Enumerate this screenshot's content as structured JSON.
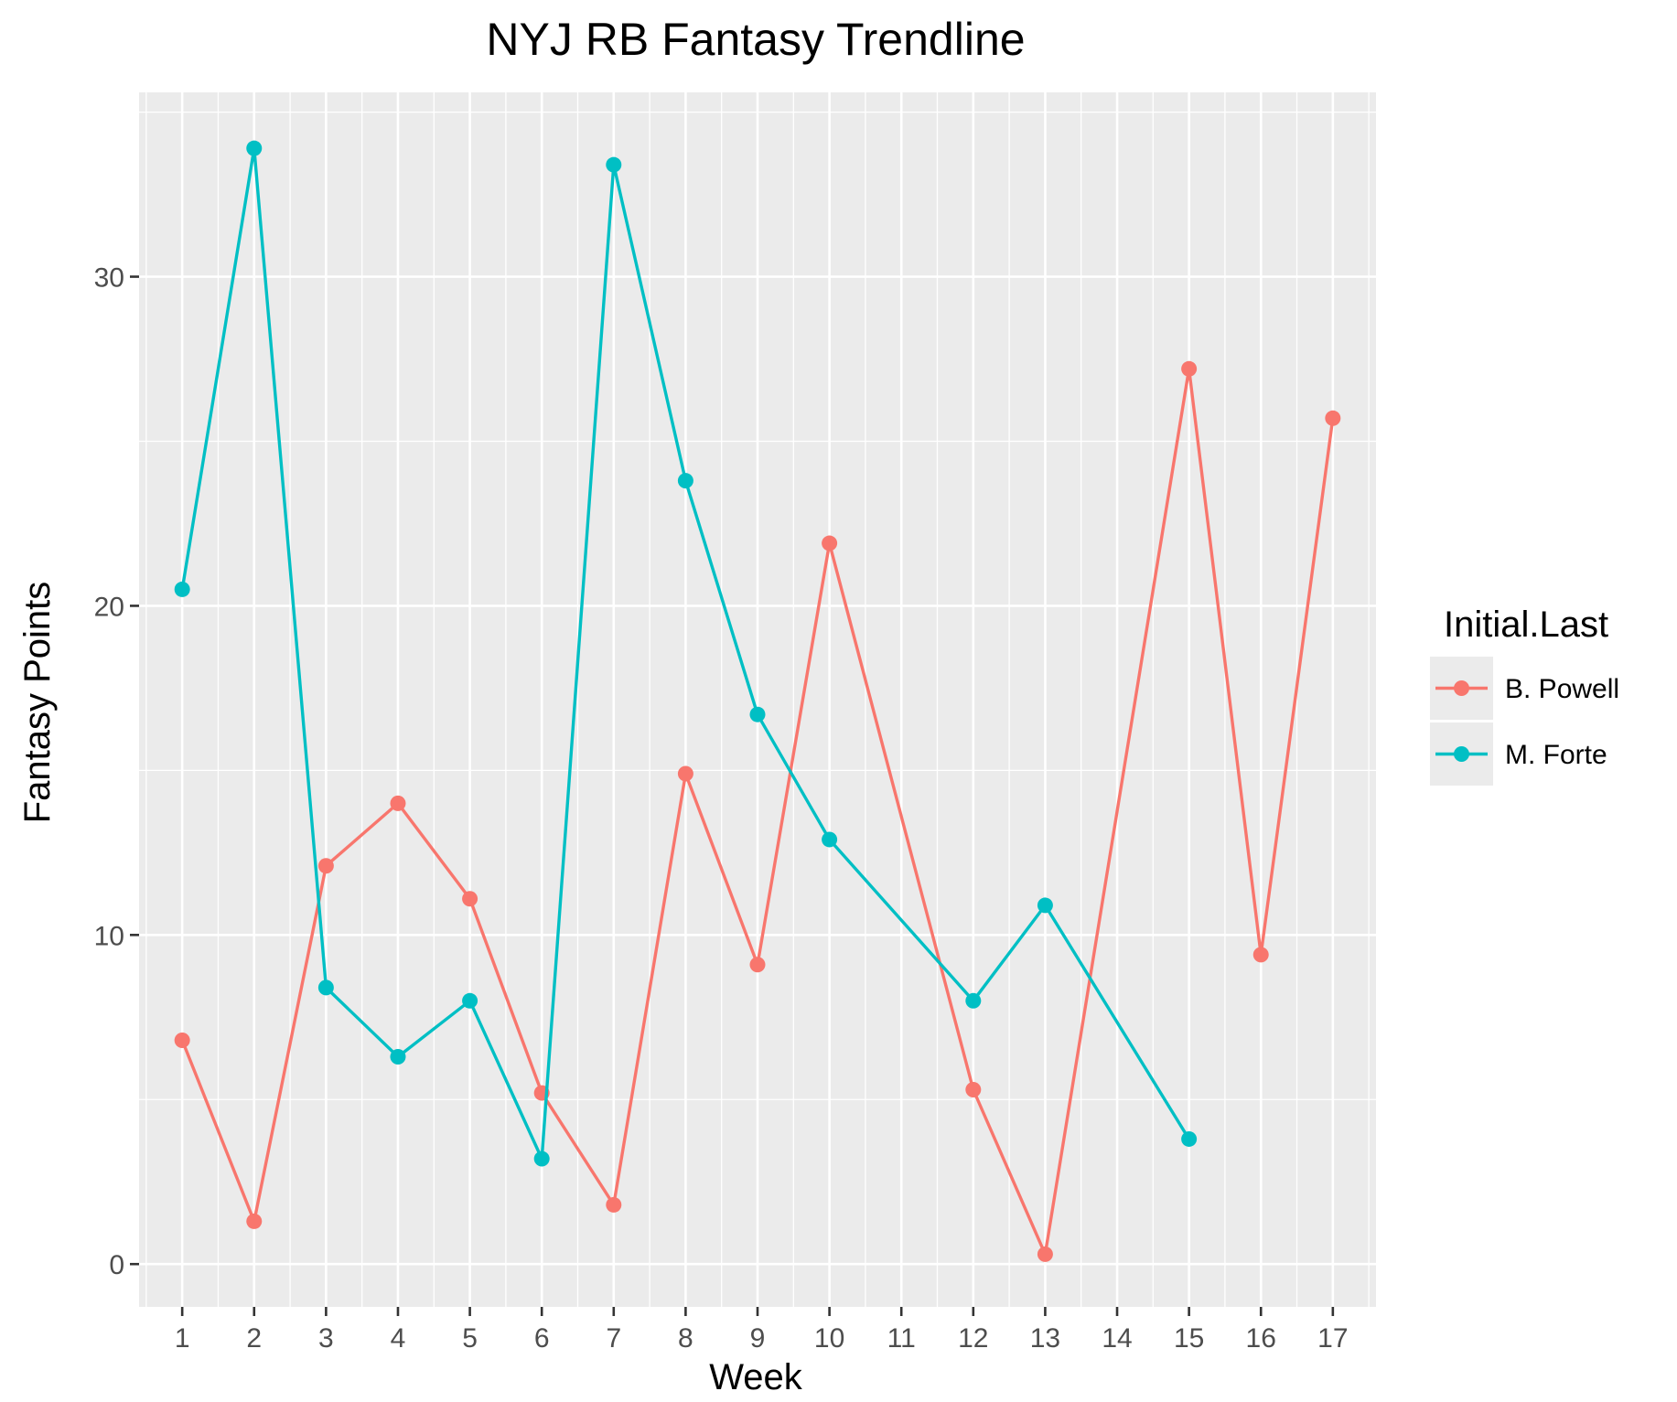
{
  "chart_data": {
    "type": "line",
    "title": "NYJ RB Fantasy Trendline",
    "xlabel": "Week",
    "ylabel": "Fantasy Points",
    "x_categories": [
      "1",
      "2",
      "3",
      "4",
      "5",
      "6",
      "7",
      "8",
      "9",
      "10",
      "11",
      "12",
      "13",
      "14",
      "15",
      "16",
      "17"
    ],
    "y_ticks": [
      0,
      10,
      20,
      30
    ],
    "y_tick_labels": [
      "0",
      "10",
      "20",
      "30"
    ],
    "ylim": [
      -1.3,
      35.6
    ],
    "grid": true,
    "legend": {
      "title": "Initial.Last",
      "position": "right"
    },
    "series": [
      {
        "name": "B. Powell",
        "color": "#F8766D",
        "points": [
          {
            "x": 1,
            "y": 6.8
          },
          {
            "x": 2,
            "y": 1.3
          },
          {
            "x": 3,
            "y": 12.1
          },
          {
            "x": 4,
            "y": 14.0
          },
          {
            "x": 5,
            "y": 11.1
          },
          {
            "x": 6,
            "y": 5.2
          },
          {
            "x": 7,
            "y": 1.8
          },
          {
            "x": 8,
            "y": 14.9
          },
          {
            "x": 9,
            "y": 9.1
          },
          {
            "x": 10,
            "y": 21.9
          },
          {
            "x": 12,
            "y": 5.3
          },
          {
            "x": 13,
            "y": 0.3
          },
          {
            "x": 15,
            "y": 27.2
          },
          {
            "x": 16,
            "y": 9.4
          },
          {
            "x": 17,
            "y": 25.7
          }
        ]
      },
      {
        "name": "M. Forte",
        "color": "#00BFC4",
        "points": [
          {
            "x": 1,
            "y": 20.5
          },
          {
            "x": 2,
            "y": 33.9
          },
          {
            "x": 3,
            "y": 8.4
          },
          {
            "x": 4,
            "y": 6.3
          },
          {
            "x": 5,
            "y": 8.0
          },
          {
            "x": 6,
            "y": 3.2
          },
          {
            "x": 7,
            "y": 33.4
          },
          {
            "x": 8,
            "y": 23.8
          },
          {
            "x": 9,
            "y": 16.7
          },
          {
            "x": 10,
            "y": 12.9
          },
          {
            "x": 12,
            "y": 8.0
          },
          {
            "x": 13,
            "y": 10.9
          },
          {
            "x": 15,
            "y": 3.8
          }
        ]
      }
    ]
  }
}
